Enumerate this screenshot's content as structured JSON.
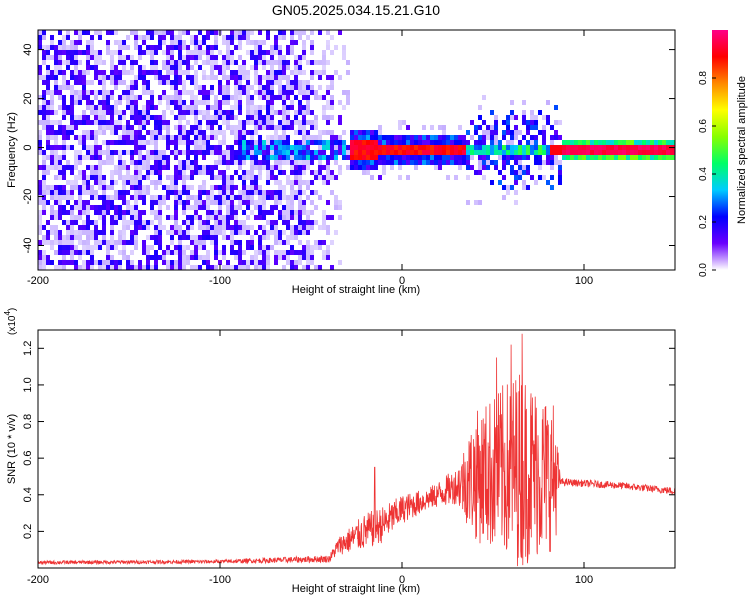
{
  "title": "GN05.2025.034.15.21.G10",
  "chart_data": [
    {
      "type": "heatmap",
      "xlabel": "Height of straight line (km)",
      "ylabel": "Frequency (Hz)",
      "xlim": [
        -200,
        150
      ],
      "ylim": [
        -50,
        48
      ],
      "xticks": [
        -200,
        -100,
        0,
        100
      ],
      "xtick_labels": [
        "-200",
        "-100",
        "0",
        "100"
      ],
      "yticks": [
        -40,
        -20,
        0,
        20,
        40
      ],
      "ytick_labels": [
        "-40",
        "-20",
        "0",
        "20",
        "40"
      ],
      "colorbar": {
        "label": "Normalized spectral amplitude",
        "range": [
          0.0,
          1.0
        ],
        "ticks": [
          0.0,
          0.2,
          0.4,
          0.6,
          0.8
        ],
        "tick_labels": [
          "0.0",
          "0.2",
          "0.4",
          "0.6",
          "0.8"
        ],
        "colormap": [
          "#ffffff",
          "#6a00ff",
          "#0000ff",
          "#00ccff",
          "#00ff66",
          "#88ff00",
          "#ffff00",
          "#ff8800",
          "#ff0000",
          "#ff0088"
        ]
      },
      "regions": [
        {
          "x_range": [
            -200,
            -30
          ],
          "kind": "broadband noise",
          "level": 0.15
        },
        {
          "x_range": [
            -90,
            -30
          ],
          "kind": "band near 0 Hz",
          "level": 0.25
        },
        {
          "x_range": [
            -30,
            35
          ],
          "kind": "narrow line near 0 Hz",
          "level": 0.9
        },
        {
          "x_range": [
            35,
            87
          ],
          "kind": "noisy band near 0 Hz",
          "level": 0.4
        },
        {
          "x_range": [
            87,
            150
          ],
          "kind": "narrow line near 0 Hz",
          "level": 0.95
        }
      ]
    },
    {
      "type": "line",
      "xlabel": "Height of straight line (km)",
      "ylabel": "SNR (10 * v/v)",
      "y_multiplier": "(x10",
      "y_multiplier_exp": "4",
      "y_multiplier_close": ")",
      "xlim": [
        -200,
        150
      ],
      "ylim": [
        0,
        1.3
      ],
      "xticks": [
        -200,
        -100,
        0,
        100
      ],
      "xtick_labels": [
        "-200",
        "-100",
        "0",
        "100"
      ],
      "yticks": [
        0.2,
        0.4,
        0.6,
        0.8,
        1.0,
        1.2
      ],
      "ytick_labels": [
        "0.2",
        "0.4",
        "0.6",
        "0.8",
        "1.0",
        "1.2"
      ],
      "color": "#ee3333",
      "envelope": [
        {
          "x": -200,
          "mean": 0.03,
          "spread": 0.01
        },
        {
          "x": -100,
          "mean": 0.035,
          "spread": 0.01
        },
        {
          "x": -40,
          "mean": 0.05,
          "spread": 0.02
        },
        {
          "x": -35,
          "mean": 0.12,
          "spread": 0.05
        },
        {
          "x": -20,
          "mean": 0.2,
          "spread": 0.1
        },
        {
          "x": -10,
          "mean": 0.24,
          "spread": 0.1
        },
        {
          "x": 0,
          "mean": 0.32,
          "spread": 0.08
        },
        {
          "x": 15,
          "mean": 0.38,
          "spread": 0.06
        },
        {
          "x": 30,
          "mean": 0.45,
          "spread": 0.1
        },
        {
          "x": 40,
          "mean": 0.5,
          "spread": 0.35
        },
        {
          "x": 65,
          "mean": 0.55,
          "spread": 0.55
        },
        {
          "x": 84,
          "mean": 0.5,
          "spread": 0.4
        },
        {
          "x": 87,
          "mean": 0.47,
          "spread": 0.02
        },
        {
          "x": 120,
          "mean": 0.45,
          "spread": 0.02
        },
        {
          "x": 150,
          "mean": 0.42,
          "spread": 0.02
        }
      ],
      "peaks": [
        {
          "x": -15,
          "y": 0.55
        },
        {
          "x": 52,
          "y": 1.15
        },
        {
          "x": 66,
          "y": 1.28
        },
        {
          "x": 60,
          "y": 1.22
        }
      ]
    }
  ]
}
